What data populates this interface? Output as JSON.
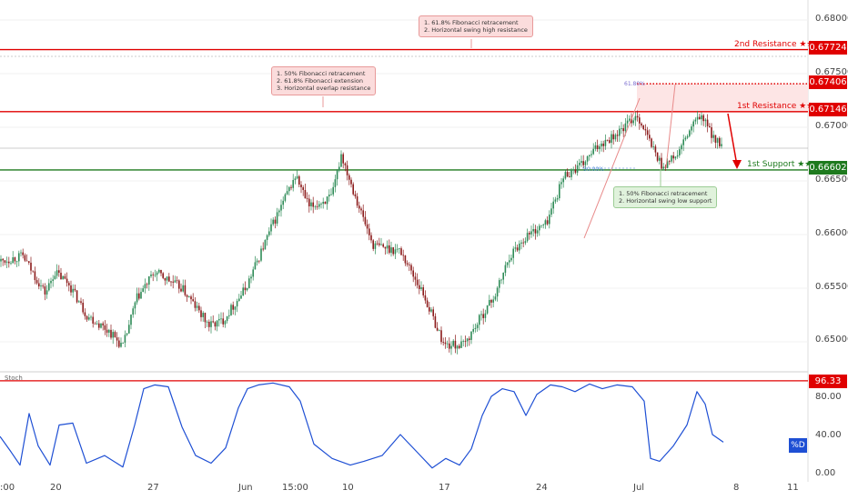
{
  "chart_data": [
    {
      "type": "candlestick",
      "title": "",
      "xlabel": "",
      "ylabel": "",
      "ylim": [
        0.6465,
        0.6818
      ],
      "x_ticks": [
        ":00",
        "20",
        "27",
        "Jun",
        "15:00",
        "10",
        "17",
        "24",
        "Jul",
        "8",
        "11"
      ],
      "y_ticks": [
        "0.68000",
        "0.67500",
        "0.67000",
        "0.66500",
        "0.66000",
        "0.65500",
        "0.65000"
      ],
      "price_path_anchors": [
        [
          0,
          0.6575
        ],
        [
          25,
          0.658
        ],
        [
          50,
          0.6545
        ],
        [
          60,
          0.6565
        ],
        [
          75,
          0.6555
        ],
        [
          95,
          0.6525
        ],
        [
          120,
          0.651
        ],
        [
          135,
          0.6495
        ],
        [
          150,
          0.654
        ],
        [
          170,
          0.6565
        ],
        [
          200,
          0.655
        ],
        [
          230,
          0.6515
        ],
        [
          245,
          0.652
        ],
        [
          270,
          0.655
        ],
        [
          300,
          0.661
        ],
        [
          325,
          0.6655
        ],
        [
          340,
          0.6625
        ],
        [
          365,
          0.6635
        ],
        [
          375,
          0.6675
        ],
        [
          395,
          0.6625
        ],
        [
          410,
          0.659
        ],
        [
          440,
          0.6585
        ],
        [
          465,
          0.6545
        ],
        [
          488,
          0.6497
        ],
        [
          510,
          0.6497
        ],
        [
          530,
          0.6525
        ],
        [
          545,
          0.6545
        ],
        [
          560,
          0.658
        ],
        [
          580,
          0.66
        ],
        [
          600,
          0.661
        ],
        [
          620,
          0.6655
        ],
        [
          640,
          0.6665
        ],
        [
          660,
          0.6685
        ],
        [
          680,
          0.6695
        ],
        [
          700,
          0.6712
        ],
        [
          715,
          0.6685
        ],
        [
          728,
          0.6663
        ],
        [
          745,
          0.6675
        ],
        [
          760,
          0.67
        ],
        [
          770,
          0.6711
        ],
        [
          785,
          0.669
        ],
        [
          795,
          0.668
        ]
      ],
      "levels": [
        {
          "label": "2nd Resistance ★★",
          "value": 0.67724,
          "color": "#e00000"
        },
        {
          "label": "",
          "value": 0.67406,
          "color": "#e00000",
          "style": "dotted"
        },
        {
          "label": "1st Resistance ★★",
          "value": 0.67146,
          "color": "#e00000"
        },
        {
          "label": "1st Support ★★",
          "value": 0.66602,
          "color": "#1e7a1e"
        }
      ],
      "price_labels": [
        "0.67724",
        "0.67406",
        "0.67146",
        "0.66602"
      ],
      "fib_labels": [
        "61.80%",
        "50.00%"
      ],
      "annotations": [
        {
          "text": "1. 61.8% Fibonacci retracement\n2. Horizontal swing high resistance"
        },
        {
          "text": "1. 50% Fibonacci retracement\n2. 61.8% Fibonacci extension\n3. Horizontal overlap resistance"
        },
        {
          "text": "1. 50% Fibonacci retracement\n2. Horizontal swing low support"
        }
      ]
    },
    {
      "type": "line",
      "title": "Stoch",
      "ylim": [
        0,
        100
      ],
      "y_ticks": [
        "80.00",
        "40.00",
        "0.00"
      ],
      "level_label": "96.33",
      "level_value": 96.33,
      "series_label": "%D",
      "series_anchors": [
        [
          0,
          38
        ],
        [
          12,
          22
        ],
        [
          22,
          8
        ],
        [
          32,
          62
        ],
        [
          42,
          28
        ],
        [
          55,
          8
        ],
        [
          65,
          50
        ],
        [
          80,
          52
        ],
        [
          95,
          10
        ],
        [
          115,
          18
        ],
        [
          135,
          6
        ],
        [
          148,
          50
        ],
        [
          158,
          88
        ],
        [
          170,
          92
        ],
        [
          185,
          90
        ],
        [
          200,
          48
        ],
        [
          215,
          18
        ],
        [
          232,
          10
        ],
        [
          248,
          26
        ],
        [
          262,
          68
        ],
        [
          272,
          88
        ],
        [
          284,
          92
        ],
        [
          300,
          94
        ],
        [
          318,
          90
        ],
        [
          330,
          75
        ],
        [
          345,
          30
        ],
        [
          365,
          15
        ],
        [
          385,
          8
        ],
        [
          400,
          12
        ],
        [
          420,
          18
        ],
        [
          440,
          40
        ],
        [
          460,
          20
        ],
        [
          475,
          5
        ],
        [
          490,
          15
        ],
        [
          505,
          8
        ],
        [
          518,
          25
        ],
        [
          530,
          60
        ],
        [
          540,
          80
        ],
        [
          552,
          88
        ],
        [
          565,
          85
        ],
        [
          578,
          60
        ],
        [
          590,
          82
        ],
        [
          605,
          92
        ],
        [
          618,
          90
        ],
        [
          632,
          85
        ],
        [
          648,
          93
        ],
        [
          662,
          88
        ],
        [
          678,
          92
        ],
        [
          695,
          90
        ],
        [
          708,
          75
        ],
        [
          715,
          15
        ],
        [
          725,
          12
        ],
        [
          740,
          28
        ],
        [
          755,
          50
        ],
        [
          766,
          85
        ],
        [
          775,
          72
        ],
        [
          783,
          40
        ],
        [
          795,
          32
        ]
      ]
    }
  ]
}
